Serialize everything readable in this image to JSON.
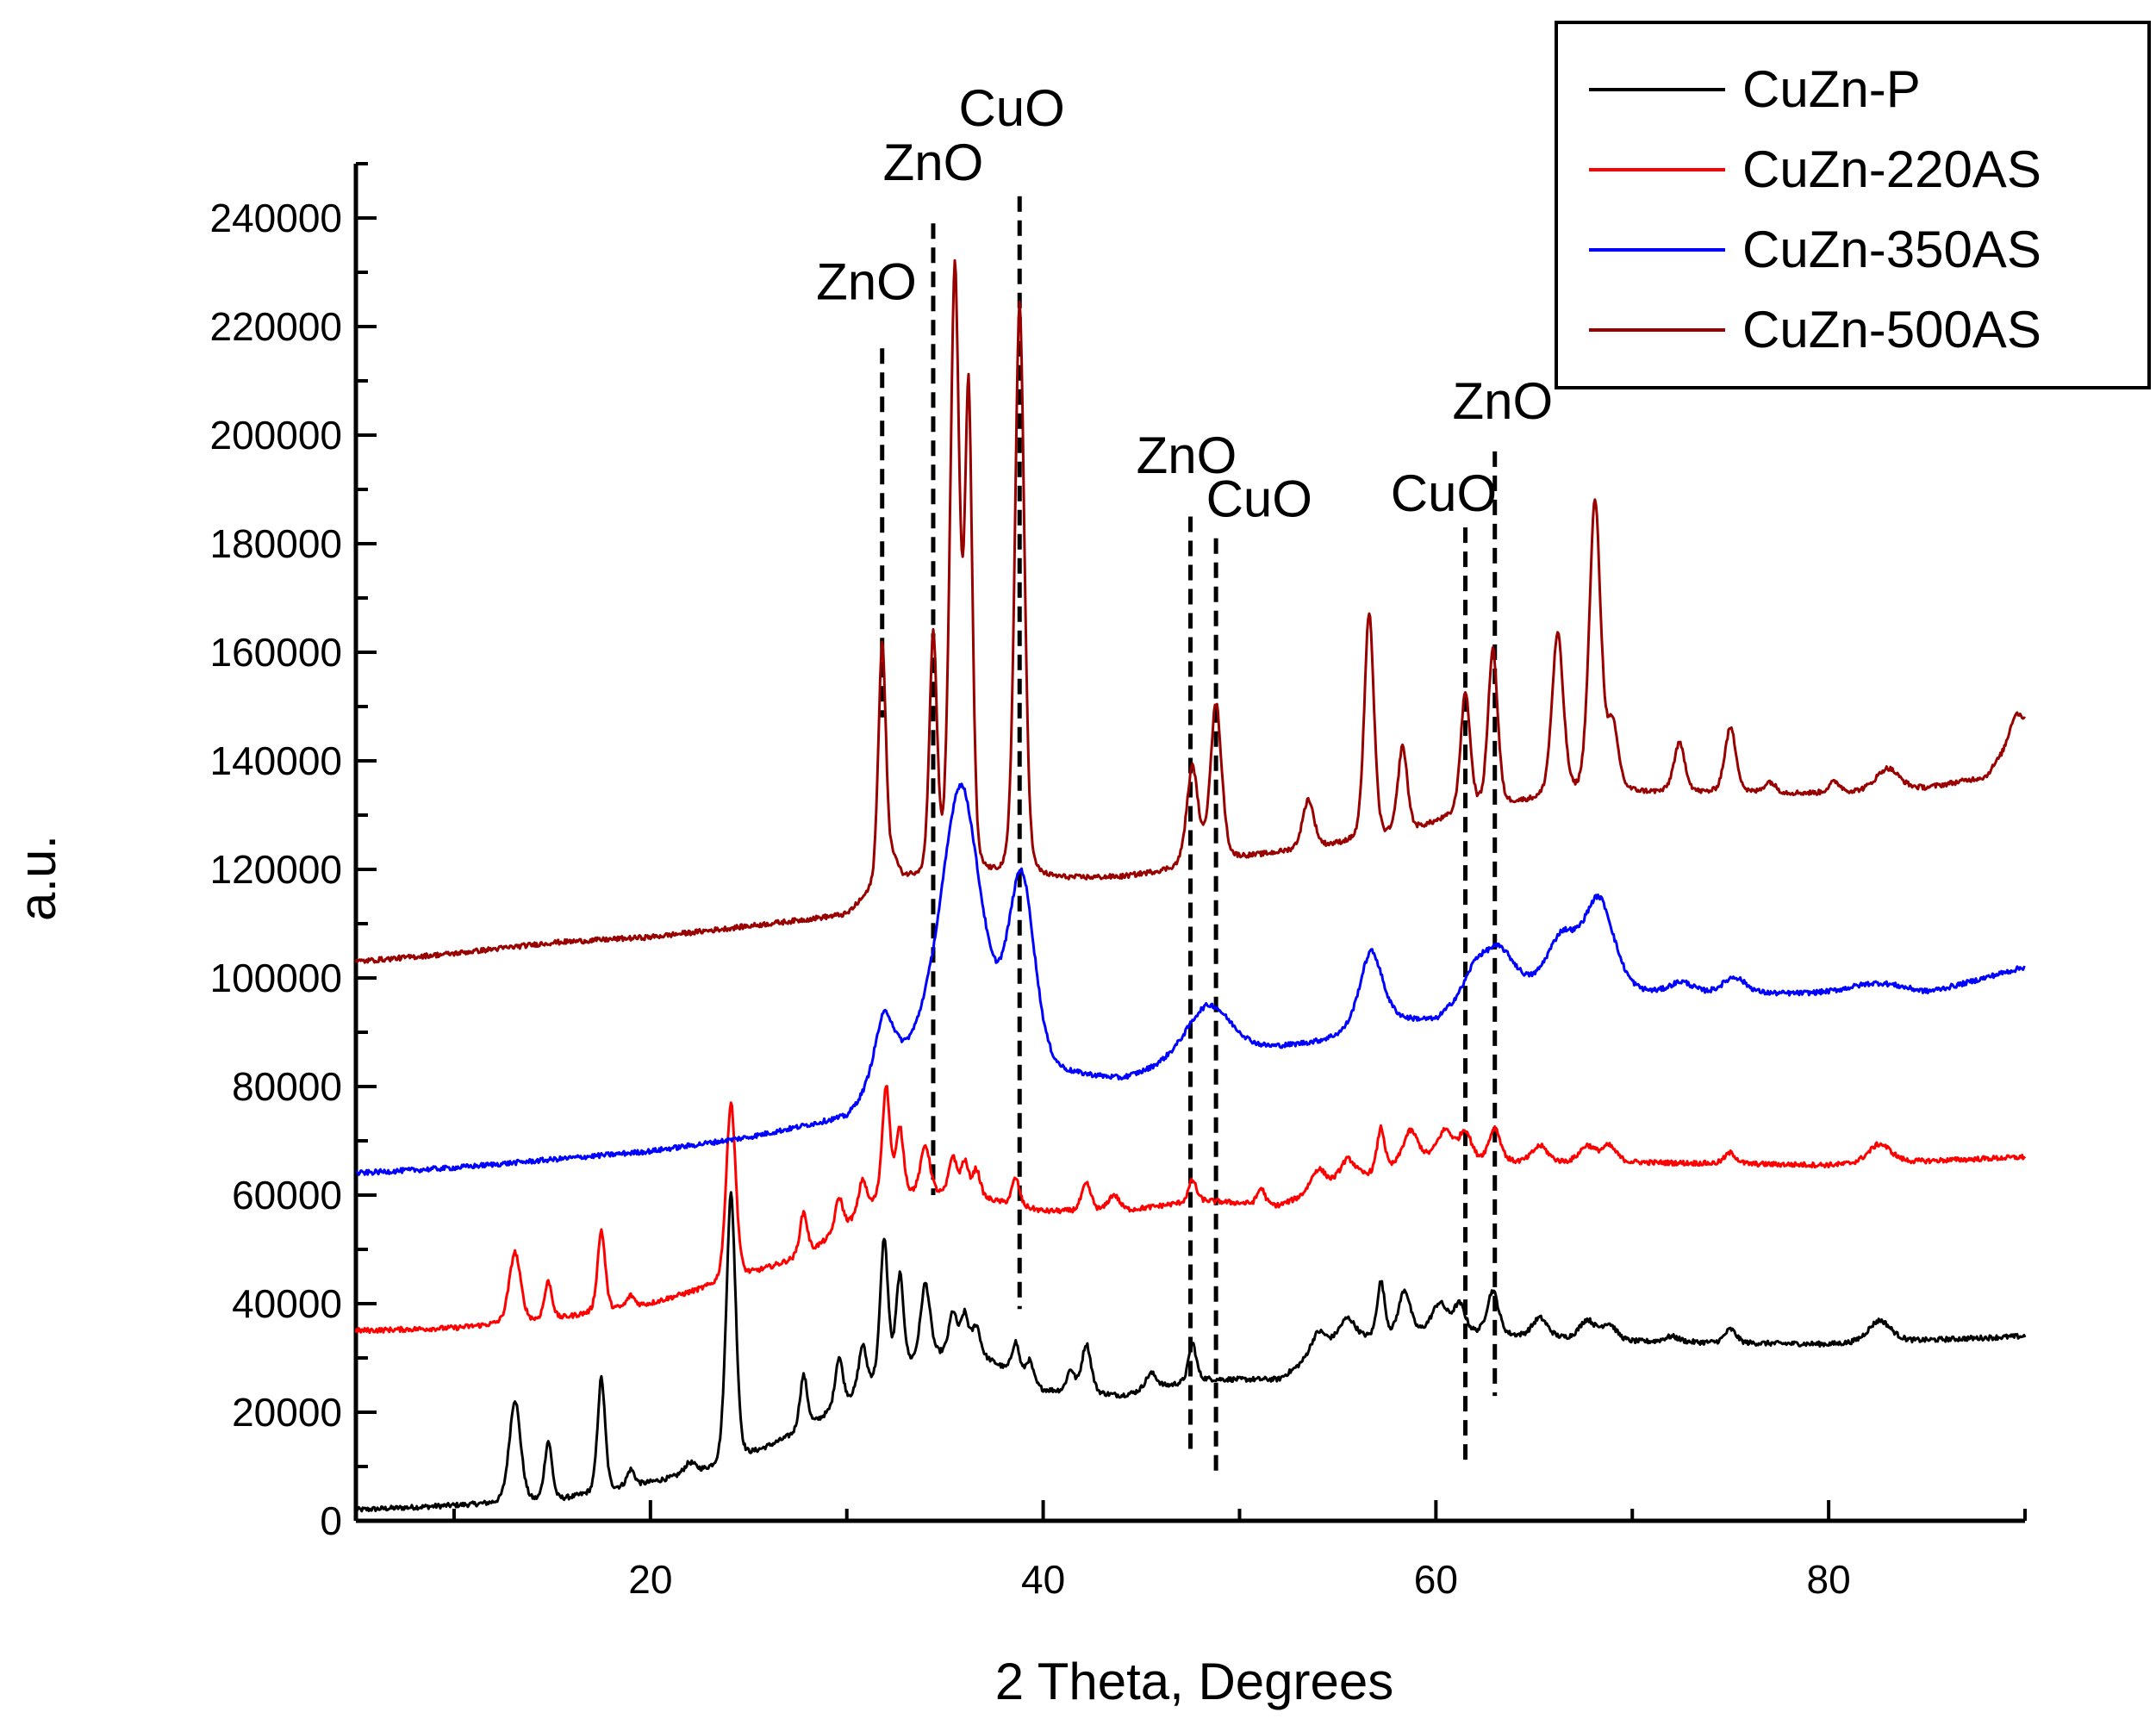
{
  "chart_data": {
    "type": "line",
    "title": "",
    "xlabel": "2 Theta, Degrees",
    "ylabel": "a.u.",
    "xlim": [
      5,
      90
    ],
    "ylim": [
      0,
      250000
    ],
    "x_ticks": [
      20,
      40,
      60,
      80
    ],
    "x_tick_labels": [
      "20",
      "40",
      "60",
      "80"
    ],
    "y_ticks": [
      0,
      20000,
      40000,
      60000,
      80000,
      100000,
      120000,
      140000,
      160000,
      180000,
      200000,
      220000,
      240000
    ],
    "y_tick_labels": [
      "0",
      "20000",
      "40000",
      "60000",
      "80000",
      "100000",
      "120000",
      "140000",
      "160000",
      "180000",
      "200000",
      "220000",
      "240000"
    ],
    "grid": false,
    "legend_position": "top-right",
    "series": [
      {
        "name": "CuZn-P",
        "color": "#000000",
        "baseline": [
          [
            5,
            2000
          ],
          [
            10,
            2800
          ],
          [
            15,
            3500
          ],
          [
            20,
            7000
          ],
          [
            24,
            10000
          ],
          [
            28,
            17000
          ],
          [
            32,
            27000
          ],
          [
            36,
            32000
          ],
          [
            40,
            24000
          ],
          [
            44,
            23000
          ],
          [
            48,
            26000
          ],
          [
            52,
            26000
          ],
          [
            55,
            33000
          ],
          [
            60,
            35000
          ],
          [
            64,
            34000
          ],
          [
            70,
            33000
          ],
          [
            80,
            32500
          ],
          [
            90,
            34000
          ]
        ],
        "peaks": [
          [
            13.1,
            19000,
            0.3
          ],
          [
            14.8,
            11000,
            0.2
          ],
          [
            17.5,
            21000,
            0.2
          ],
          [
            19.0,
            3000,
            0.2
          ],
          [
            22.0,
            2000,
            0.3
          ],
          [
            24.1,
            50000,
            0.25
          ],
          [
            27.8,
            10000,
            0.2
          ],
          [
            29.6,
            9000,
            0.2
          ],
          [
            30.8,
            8000,
            0.2
          ],
          [
            31.9,
            25000,
            0.2
          ],
          [
            32.7,
            17000,
            0.2
          ],
          [
            34.0,
            14000,
            0.25
          ],
          [
            35.4,
            7000,
            0.2
          ],
          [
            36.0,
            6000,
            0.2
          ],
          [
            36.6,
            5000,
            0.2
          ],
          [
            38.6,
            6000,
            0.2
          ],
          [
            39.3,
            4000,
            0.2
          ],
          [
            41.4,
            4000,
            0.2
          ],
          [
            42.2,
            9000,
            0.25
          ],
          [
            45.5,
            3000,
            0.3
          ],
          [
            47.6,
            7000,
            0.2
          ],
          [
            54.0,
            4000,
            0.4
          ],
          [
            55.5,
            4000,
            0.4
          ],
          [
            57.2,
            10000,
            0.2
          ],
          [
            58.4,
            8000,
            0.3
          ],
          [
            60.2,
            5000,
            0.4
          ],
          [
            61.2,
            5000,
            0.3
          ],
          [
            62.9,
            8000,
            0.3
          ],
          [
            65.3,
            3500,
            0.4
          ],
          [
            67.7,
            3500,
            0.4
          ],
          [
            68.8,
            3000,
            0.4
          ],
          [
            72.0,
            1000,
            0.4
          ],
          [
            75.0,
            2500,
            0.3
          ],
          [
            82.6,
            4000,
            0.6
          ]
        ]
      },
      {
        "name": "CuZn-220AS",
        "color": "#ff0000",
        "baseline": [
          [
            5,
            35000
          ],
          [
            10,
            35500
          ],
          [
            15,
            37000
          ],
          [
            20,
            40000
          ],
          [
            24,
            44000
          ],
          [
            28,
            49000
          ],
          [
            32,
            60000
          ],
          [
            36,
            60000
          ],
          [
            40,
            57000
          ],
          [
            44,
            57000
          ],
          [
            48,
            59000
          ],
          [
            52,
            58000
          ],
          [
            55,
            62000
          ],
          [
            60,
            67000
          ],
          [
            64,
            66000
          ],
          [
            70,
            66000
          ],
          [
            80,
            65500
          ],
          [
            90,
            67000
          ]
        ],
        "peaks": [
          [
            13.1,
            13000,
            0.3
          ],
          [
            14.8,
            7000,
            0.2
          ],
          [
            17.5,
            15000,
            0.2
          ],
          [
            19.0,
            2000,
            0.2
          ],
          [
            24.1,
            33000,
            0.25
          ],
          [
            27.8,
            8000,
            0.2
          ],
          [
            29.6,
            6000,
            0.2
          ],
          [
            30.8,
            6000,
            0.2
          ],
          [
            32.0,
            20000,
            0.2
          ],
          [
            32.7,
            12000,
            0.2
          ],
          [
            34.0,
            9000,
            0.25
          ],
          [
            35.4,
            7000,
            0.2
          ],
          [
            36.0,
            6000,
            0.2
          ],
          [
            36.6,
            5000,
            0.2
          ],
          [
            38.6,
            5000,
            0.2
          ],
          [
            42.2,
            5000,
            0.25
          ],
          [
            43.6,
            3000,
            0.3
          ],
          [
            47.6,
            4000,
            0.2
          ],
          [
            51.1,
            3000,
            0.2
          ],
          [
            54.0,
            4000,
            0.4
          ],
          [
            55.5,
            4000,
            0.4
          ],
          [
            57.2,
            8000,
            0.2
          ],
          [
            58.7,
            6000,
            0.4
          ],
          [
            60.5,
            5000,
            0.4
          ],
          [
            61.5,
            5000,
            0.3
          ],
          [
            63.0,
            6000,
            0.3
          ],
          [
            65.3,
            3000,
            0.4
          ],
          [
            67.7,
            3000,
            0.4
          ],
          [
            68.8,
            3000,
            0.4
          ],
          [
            75.0,
            2000,
            0.3
          ],
          [
            82.6,
            3500,
            0.6
          ]
        ]
      },
      {
        "name": "CuZn-350AS",
        "color": "#0000ff",
        "baseline": [
          [
            5,
            64000
          ],
          [
            10,
            65000
          ],
          [
            15,
            66500
          ],
          [
            20,
            68000
          ],
          [
            25,
            70500
          ],
          [
            30,
            74000
          ],
          [
            32,
            82000
          ],
          [
            34,
            88000
          ],
          [
            37,
            88000
          ],
          [
            40,
            82000
          ],
          [
            44,
            81000
          ],
          [
            46,
            83000
          ],
          [
            50,
            86000
          ],
          [
            54,
            88000
          ],
          [
            58,
            92000
          ],
          [
            60,
            92000
          ],
          [
            62,
            98000
          ],
          [
            64,
            98000
          ],
          [
            66,
            97000
          ],
          [
            70,
            97000
          ],
          [
            75,
            97000
          ],
          [
            80,
            97000
          ],
          [
            85,
            97000
          ],
          [
            90,
            102000
          ]
        ],
        "peaks": [
          [
            31.9,
            11000,
            0.5
          ],
          [
            35.8,
            47000,
            1.0
          ],
          [
            38.9,
            34000,
            0.7
          ],
          [
            48.4,
            10000,
            1.2
          ],
          [
            56.7,
            14000,
            0.6
          ],
          [
            62.0,
            3000,
            0.6
          ],
          [
            63.2,
            7000,
            0.8
          ],
          [
            66.4,
            10000,
            0.8
          ],
          [
            68.3,
            17000,
            0.8
          ],
          [
            72.5,
            2000,
            0.6
          ],
          [
            75.2,
            3000,
            0.6
          ],
          [
            82.5,
            2000,
            1.5
          ]
        ]
      },
      {
        "name": "CuZn-500AS",
        "color": "#990000",
        "baseline": [
          [
            5,
            103000
          ],
          [
            10,
            104500
          ],
          [
            15,
            106500
          ],
          [
            20,
            107500
          ],
          [
            25,
            109500
          ],
          [
            30,
            111500
          ],
          [
            32,
            118000
          ],
          [
            36,
            118000
          ],
          [
            40,
            118000
          ],
          [
            44,
            118500
          ],
          [
            46,
            119500
          ],
          [
            50,
            122000
          ],
          [
            54,
            124000
          ],
          [
            58,
            126000
          ],
          [
            62,
            131000
          ],
          [
            66,
            133000
          ],
          [
            70,
            134000
          ],
          [
            75,
            134000
          ],
          [
            80,
            134000
          ],
          [
            85,
            135000
          ],
          [
            88,
            137000
          ],
          [
            90,
            147000
          ]
        ],
        "peaks": [
          [
            31.8,
            44000,
            0.2
          ],
          [
            32.4,
            3000,
            0.2
          ],
          [
            34.4,
            44000,
            0.2
          ],
          [
            35.5,
            111000,
            0.25
          ],
          [
            36.2,
            87000,
            0.2
          ],
          [
            38.8,
            106000,
            0.25
          ],
          [
            47.6,
            18000,
            0.3
          ],
          [
            48.8,
            29000,
            0.3
          ],
          [
            53.5,
            9000,
            0.3
          ],
          [
            56.6,
            42000,
            0.25
          ],
          [
            58.3,
            16000,
            0.25
          ],
          [
            61.5,
            22000,
            0.25
          ],
          [
            62.9,
            29000,
            0.25
          ],
          [
            66.2,
            30000,
            0.3
          ],
          [
            68.1,
            54000,
            0.3
          ],
          [
            69.0,
            12000,
            0.3
          ],
          [
            72.4,
            9000,
            0.3
          ],
          [
            75.0,
            12000,
            0.3
          ],
          [
            77.0,
            2000,
            0.3
          ],
          [
            80.3,
            2000,
            0.3
          ],
          [
            83.0,
            4000,
            0.6
          ],
          [
            89.5,
            4000,
            0.3
          ]
        ]
      }
    ],
    "annotations": [
      {
        "label": "ZnO",
        "x": 31.8,
        "y_top": 216000,
        "y_bottom": 148000,
        "label_x": 31.0,
        "label_y": 225000
      },
      {
        "label": "ZnO",
        "x": 34.4,
        "y_top": 239000,
        "y_bottom": 60000,
        "label_x": 34.4,
        "label_y": 247000
      },
      {
        "label": "CuO",
        "x": 38.8,
        "y_top": 244000,
        "y_bottom": 39000,
        "label_x": 38.4,
        "label_y": 257000
      },
      {
        "label": "ZnO",
        "x": 47.5,
        "y_top": 185000,
        "y_bottom": 12500,
        "label_x": 47.3,
        "label_y": 193000
      },
      {
        "label": "CuO",
        "x": 48.8,
        "y_top": 181000,
        "y_bottom": 8500,
        "label_x": 51.0,
        "label_y": 185000
      },
      {
        "label": "CuO",
        "x": 61.5,
        "y_top": 183000,
        "y_bottom": 10500,
        "label_x": 60.4,
        "label_y": 186000
      },
      {
        "label": "ZnO",
        "x": 63.0,
        "y_top": 197000,
        "y_bottom": 23000,
        "label_x": 63.4,
        "label_y": 203000
      }
    ]
  }
}
